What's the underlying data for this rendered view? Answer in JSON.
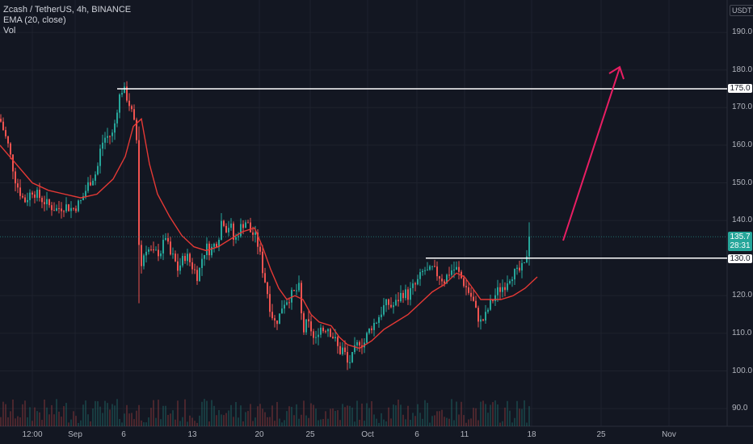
{
  "legend": {
    "symbol": "Zcash / TetherUS, 4h, BINANCE",
    "ema": "EMA (20, close)",
    "vol": "Vol"
  },
  "price_axis": {
    "currency": "USDT",
    "ticks": [
      "190.0",
      "180.0",
      "170.0",
      "160.0",
      "150.0",
      "140.0",
      "120.0",
      "110.0",
      "100.0",
      "90.0"
    ]
  },
  "time_axis": {
    "ticks": [
      "12:00",
      "Sep",
      "6",
      "13",
      "20",
      "25",
      "Oct",
      "6",
      "11",
      "18",
      "25",
      "Nov"
    ]
  },
  "levels": {
    "resistance": "175.0",
    "support": "130.0"
  },
  "current_price": {
    "price": "135.7",
    "countdown": "28:31"
  },
  "colors": {
    "background": "#131722",
    "up": "#26a69a",
    "down": "#ef5350",
    "ema": "#e53935",
    "arrow": "#e91e63",
    "level": "#ffffff"
  },
  "chart_data": {
    "type": "candlestick",
    "y_range": [
      86,
      196
    ],
    "price_path": [
      [
        0,
        167
      ],
      [
        10,
        160
      ],
      [
        20,
        150
      ],
      [
        30,
        145
      ],
      [
        40,
        148
      ],
      [
        50,
        146
      ],
      [
        60,
        144
      ],
      [
        70,
        143
      ],
      [
        80,
        144
      ],
      [
        90,
        143
      ],
      [
        100,
        145
      ],
      [
        110,
        150
      ],
      [
        120,
        153
      ],
      [
        125,
        160
      ],
      [
        130,
        162
      ],
      [
        140,
        163
      ],
      [
        145,
        170
      ],
      [
        150,
        175
      ],
      [
        155,
        174
      ],
      [
        160,
        171
      ],
      [
        165,
        167
      ],
      [
        170,
        160
      ],
      [
        172,
        134
      ],
      [
        175,
        128
      ],
      [
        180,
        133
      ],
      [
        190,
        131
      ],
      [
        200,
        132
      ],
      [
        205,
        136
      ],
      [
        210,
        131
      ],
      [
        215,
        130
      ],
      [
        220,
        127
      ],
      [
        225,
        129
      ],
      [
        230,
        131
      ],
      [
        240,
        127
      ],
      [
        245,
        125
      ],
      [
        250,
        130
      ],
      [
        255,
        133
      ],
      [
        260,
        132
      ],
      [
        270,
        135
      ],
      [
        275,
        141
      ],
      [
        280,
        138
      ],
      [
        285,
        139
      ],
      [
        290,
        134
      ],
      [
        295,
        137
      ],
      [
        300,
        139
      ],
      [
        305,
        140
      ],
      [
        310,
        137
      ],
      [
        315,
        136
      ],
      [
        320,
        133
      ],
      [
        325,
        127
      ],
      [
        330,
        122
      ],
      [
        335,
        116
      ],
      [
        340,
        113
      ],
      [
        345,
        114
      ],
      [
        350,
        118
      ],
      [
        355,
        119
      ],
      [
        360,
        120
      ],
      [
        365,
        121
      ],
      [
        370,
        122
      ],
      [
        375,
        110
      ],
      [
        380,
        113
      ],
      [
        385,
        111
      ],
      [
        390,
        107
      ],
      [
        395,
        112
      ],
      [
        400,
        111
      ],
      [
        405,
        112
      ],
      [
        410,
        110
      ],
      [
        415,
        108
      ],
      [
        420,
        105
      ],
      [
        425,
        106
      ],
      [
        430,
        102
      ],
      [
        435,
        103
      ],
      [
        440,
        106
      ],
      [
        445,
        108
      ],
      [
        450,
        107
      ],
      [
        455,
        110
      ],
      [
        460,
        112
      ],
      [
        465,
        113
      ],
      [
        470,
        115
      ],
      [
        475,
        117
      ],
      [
        480,
        118
      ],
      [
        485,
        117
      ],
      [
        490,
        118
      ],
      [
        495,
        120
      ],
      [
        500,
        121
      ],
      [
        505,
        120
      ],
      [
        510,
        122
      ],
      [
        515,
        123
      ],
      [
        520,
        125
      ],
      [
        525,
        127
      ],
      [
        530,
        126
      ],
      [
        535,
        127
      ],
      [
        540,
        126
      ],
      [
        545,
        125
      ],
      [
        550,
        124
      ],
      [
        555,
        126
      ],
      [
        560,
        127
      ],
      [
        565,
        127
      ],
      [
        570,
        125
      ],
      [
        575,
        123
      ],
      [
        580,
        121
      ],
      [
        585,
        119
      ],
      [
        590,
        115
      ],
      [
        595,
        113
      ],
      [
        600,
        114
      ],
      [
        605,
        117
      ],
      [
        610,
        119
      ],
      [
        615,
        121
      ],
      [
        620,
        122
      ],
      [
        625,
        123
      ],
      [
        630,
        125
      ],
      [
        635,
        126
      ],
      [
        640,
        126
      ],
      [
        645,
        127
      ],
      [
        650,
        128
      ],
      [
        655,
        136
      ]
    ],
    "ema_path": [
      [
        0,
        160
      ],
      [
        20,
        155
      ],
      [
        40,
        150
      ],
      [
        60,
        148
      ],
      [
        80,
        147
      ],
      [
        100,
        146
      ],
      [
        120,
        147
      ],
      [
        140,
        151
      ],
      [
        155,
        157
      ],
      [
        165,
        165
      ],
      [
        175,
        167
      ],
      [
        185,
        155
      ],
      [
        195,
        147
      ],
      [
        210,
        141
      ],
      [
        225,
        136
      ],
      [
        240,
        133
      ],
      [
        255,
        132
      ],
      [
        270,
        133
      ],
      [
        285,
        135
      ],
      [
        300,
        137
      ],
      [
        315,
        138
      ],
      [
        325,
        133
      ],
      [
        335,
        127
      ],
      [
        345,
        122
      ],
      [
        355,
        119
      ],
      [
        365,
        120
      ],
      [
        375,
        119
      ],
      [
        385,
        115
      ],
      [
        395,
        113
      ],
      [
        410,
        112
      ],
      [
        420,
        109
      ],
      [
        430,
        107
      ],
      [
        445,
        106
      ],
      [
        460,
        108
      ],
      [
        475,
        111
      ],
      [
        490,
        113
      ],
      [
        505,
        115
      ],
      [
        520,
        118
      ],
      [
        535,
        121
      ],
      [
        550,
        123
      ],
      [
        565,
        126
      ],
      [
        575,
        125
      ],
      [
        585,
        122
      ],
      [
        595,
        119
      ],
      [
        605,
        119
      ],
      [
        620,
        119
      ],
      [
        635,
        120
      ],
      [
        650,
        122
      ],
      [
        665,
        125
      ]
    ]
  }
}
